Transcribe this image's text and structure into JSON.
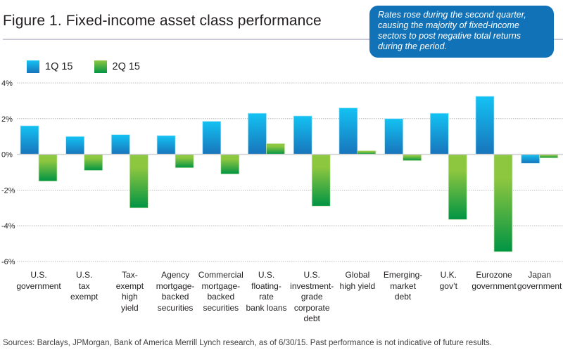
{
  "title": "Figure 1. Fixed-income asset class performance",
  "callout": "Rates rose during the second quarter, causing the majority of fixed-income sectors to post negative total returns during the period.",
  "source": "Sources: Barclays, JPMorgan, Bank of America Merrill Lynch research, as of 6/30/15. Past performance is not indicative of future results.",
  "colors": {
    "series1_top": "#13c2f3",
    "series1_bottom": "#1874bb",
    "series2_top": "#8dc63f",
    "series2_bottom": "#009444",
    "callout_bg": "#1272b8",
    "gridline": "#a7a9ac",
    "zero_line": "#cfd0d2"
  },
  "chart_data": {
    "type": "bar",
    "title": "Figure 1. Fixed-income asset class performance",
    "xlabel": "",
    "ylabel": "",
    "ylim": [
      -6,
      4
    ],
    "yticks": [
      4,
      2,
      0,
      -2,
      -4,
      -6
    ],
    "ytick_labels": [
      "4%",
      "2%",
      "0%",
      "-2%",
      "-4%",
      "-6%"
    ],
    "grid": true,
    "legend_position": "top-left",
    "categories": [
      "U.S.\ngovernment",
      "U.S.\ntax\nexempt",
      "Tax-\nexempt\nhigh\nyield",
      "Agency\nmortgage-\nbacked\nsecurities",
      "Commercial\nmortgage-\nbacked\nsecurities",
      "U.S.\nfloating-\nrate\nbank loans",
      "U.S.\ninvestment-\ngrade\ncorporate\ndebt",
      "Global\nhigh yield",
      "Emerging-\nmarket\ndebt",
      "U.K.\ngov’t",
      "Eurozone\ngovernment",
      "Japan\ngovernment"
    ],
    "series": [
      {
        "name": "1Q 15",
        "values": [
          1.6,
          1.0,
          1.1,
          1.05,
          1.85,
          2.3,
          2.15,
          2.6,
          2.0,
          2.3,
          3.25,
          -0.5
        ]
      },
      {
        "name": "2Q 15",
        "values": [
          -1.5,
          -0.9,
          -3.0,
          -0.75,
          -1.1,
          0.6,
          -2.9,
          0.2,
          -0.35,
          -3.65,
          -5.45,
          -0.2
        ]
      }
    ]
  }
}
